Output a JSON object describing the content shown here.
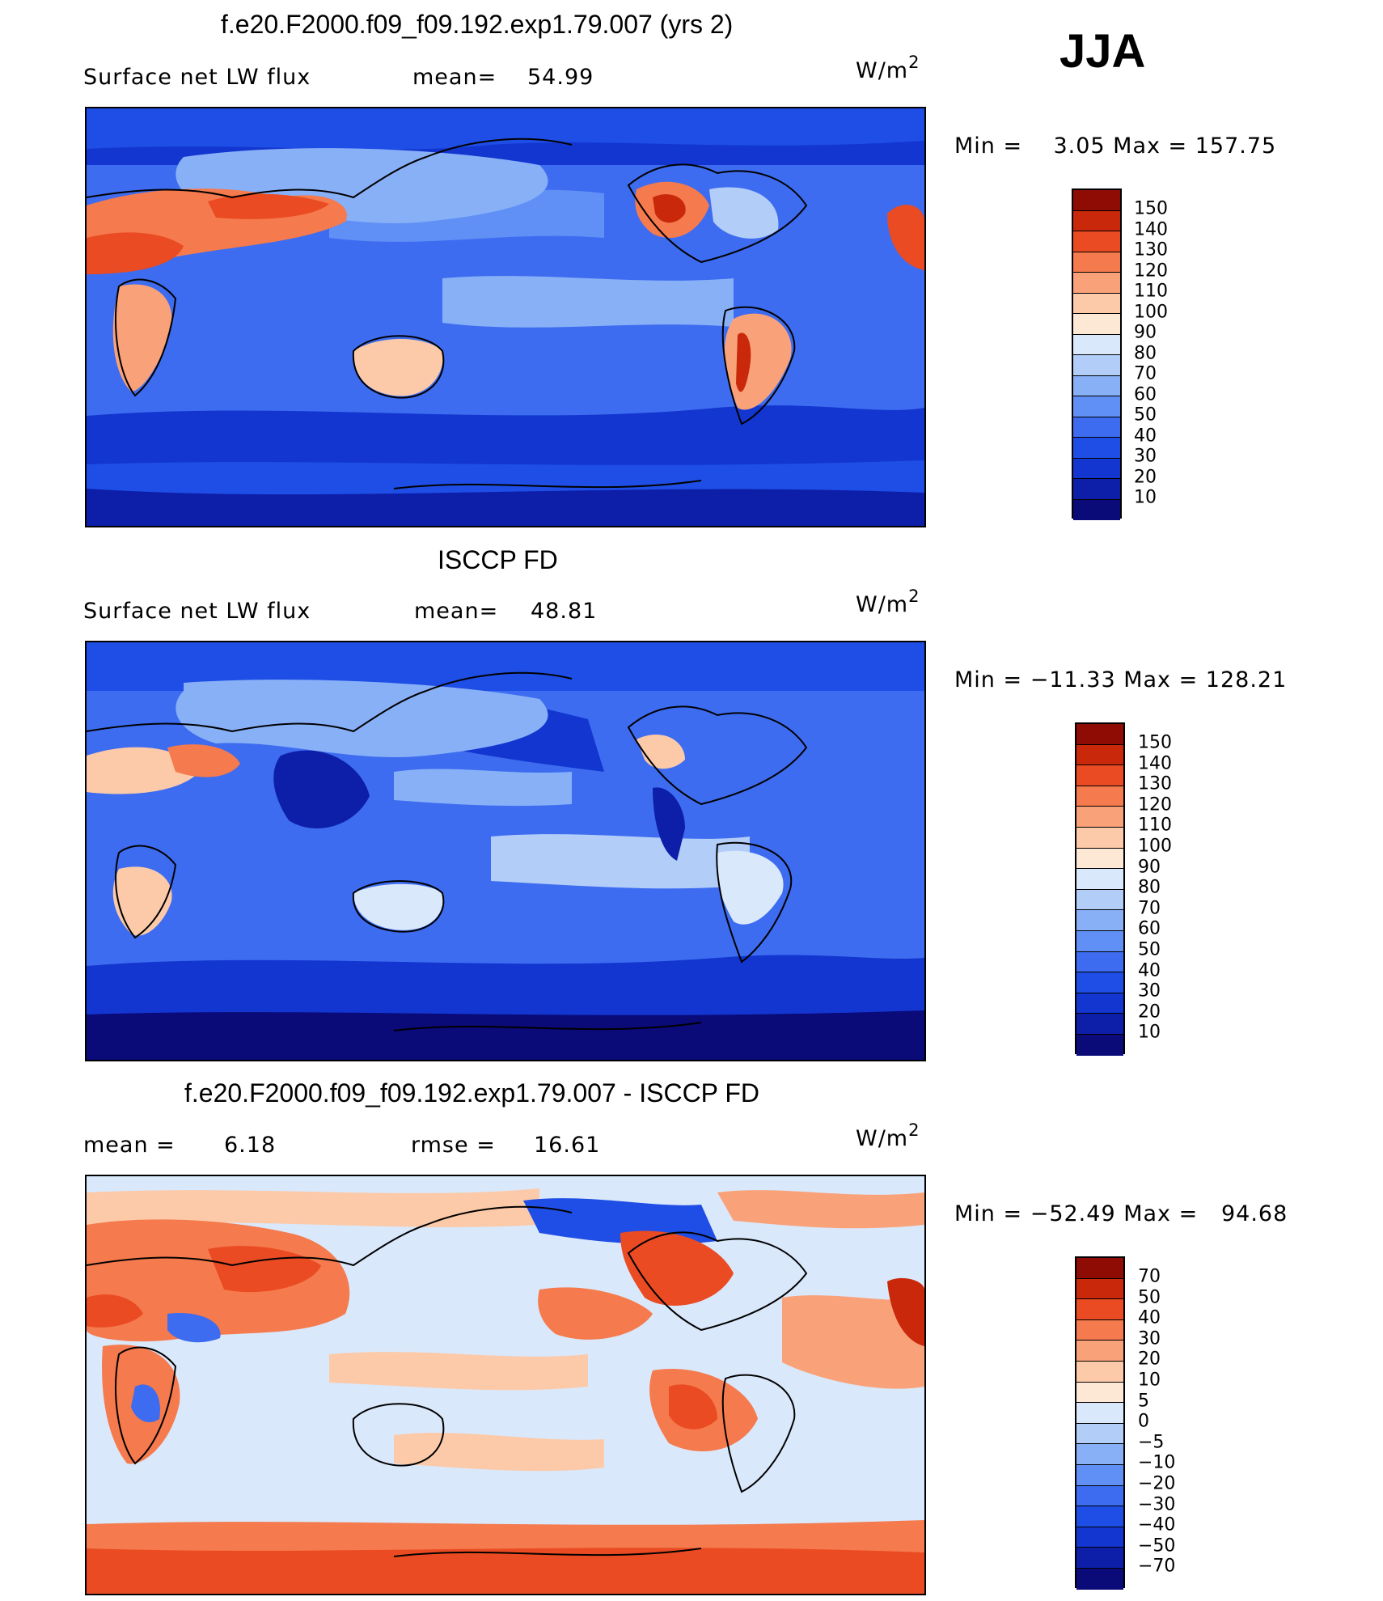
{
  "season": "JJA",
  "units_label": "W/m",
  "units_sup": "2",
  "panels": [
    {
      "title": "f.e20.F2000.f09_f09.192.exp1.79.007 (yrs 2)",
      "left_label": "Surface net LW flux",
      "mid_label": "mean=",
      "mid_value": "54.99",
      "minmax": "Min =    3.05 Max = 157.75",
      "colorbar_levels": [
        "150",
        "140",
        "130",
        "120",
        "110",
        "100",
        "90",
        "80",
        "70",
        "60",
        "50",
        "40",
        "30",
        "20",
        "10"
      ]
    },
    {
      "title": "ISCCP FD",
      "left_label": "Surface net LW flux",
      "mid_label": "mean=",
      "mid_value": "48.81",
      "minmax": "Min = −11.33 Max = 128.21",
      "colorbar_levels": [
        "150",
        "140",
        "130",
        "120",
        "110",
        "100",
        "90",
        "80",
        "70",
        "60",
        "50",
        "40",
        "30",
        "20",
        "10"
      ]
    },
    {
      "title": "f.e20.F2000.f09_f09.192.exp1.79.007 - ISCCP FD",
      "left_label": "mean =",
      "left_value": "6.18",
      "mid_label": "rmse =",
      "mid_value": "16.61",
      "minmax": "Min = −52.49 Max =   94.68",
      "colorbar_levels": [
        "70",
        "50",
        "40",
        "30",
        "20",
        "10",
        "5",
        "0",
        "−5",
        "−10",
        "−20",
        "−30",
        "−40",
        "−50",
        "−70"
      ]
    }
  ],
  "colors": {
    "flux_scale": [
      "#0a0a78",
      "#0d1fa8",
      "#1236cf",
      "#1e4ee6",
      "#3d6cf0",
      "#6090f5",
      "#88b0f7",
      "#b3cdf9",
      "#dae8fb",
      "#fde8d6",
      "#fccaa8",
      "#f9a27a",
      "#f57a4d",
      "#ea4b22",
      "#c9280b",
      "#8e0c03"
    ],
    "diff_scale": [
      "#0a0a78",
      "#0d1fa8",
      "#1236cf",
      "#1e4ee6",
      "#3d6cf0",
      "#6090f5",
      "#88b0f7",
      "#b3cdf9",
      "#dae8fb",
      "#fde8d6",
      "#fccaa8",
      "#f9a27a",
      "#f57a4d",
      "#ea4b22",
      "#c9280b",
      "#8e0c03"
    ]
  }
}
